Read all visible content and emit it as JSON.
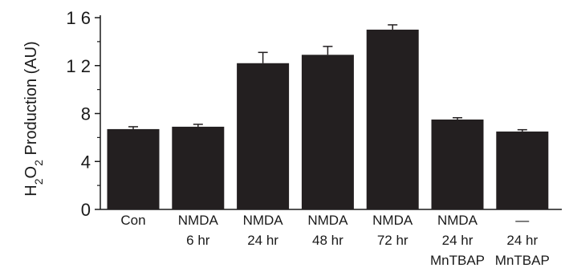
{
  "chart_data": {
    "type": "bar",
    "categories": [
      [
        "Con"
      ],
      [
        "NMDA",
        "6 hr"
      ],
      [
        "NMDA",
        "24 hr"
      ],
      [
        "NMDA",
        "48 hr"
      ],
      [
        "NMDA",
        "72 hr"
      ],
      [
        "NMDA",
        "24 hr",
        "MnTBAP"
      ],
      [
        "—",
        "24 hr",
        "MnTBAP"
      ]
    ],
    "values": [
      6.7,
      6.9,
      12.2,
      12.9,
      15.0,
      7.5,
      6.5
    ],
    "errors": [
      0.2,
      0.2,
      0.9,
      0.7,
      0.4,
      0.15,
      0.15
    ],
    "yticks": [
      0,
      4,
      8,
      12,
      16
    ],
    "ytick_labels": [
      "0",
      "4",
      "8",
      "1 2",
      "1 6"
    ],
    "ylim": [
      0,
      16
    ],
    "ylabel": {
      "parts": [
        {
          "text": "H",
          "sub": false
        },
        {
          "text": "2",
          "sub": true
        },
        {
          "text": "O",
          "sub": false
        },
        {
          "text": "2",
          "sub": true
        },
        {
          "text": " Production (AU)",
          "sub": false
        }
      ]
    },
    "bar_color": "#231f20",
    "grid": false
  }
}
